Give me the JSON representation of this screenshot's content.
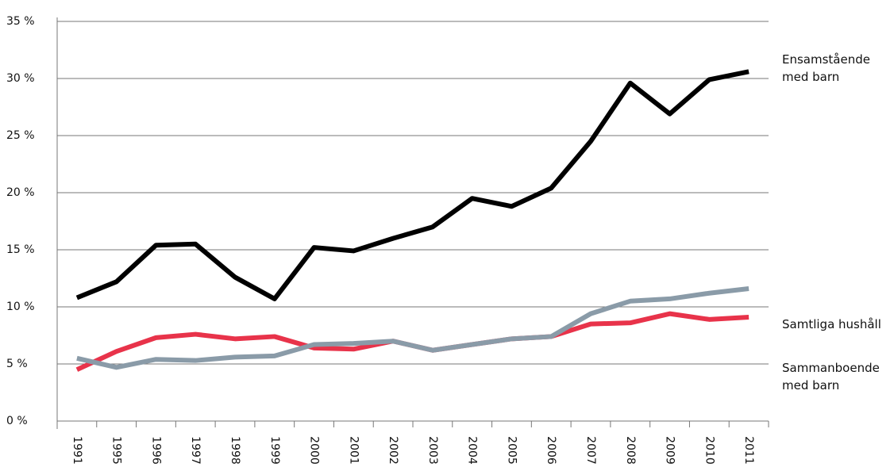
{
  "chart_data": {
    "type": "line",
    "categories": [
      "1991",
      "1995",
      "1996",
      "1997",
      "1998",
      "1999",
      "2000",
      "2001",
      "2002",
      "2003",
      "2004",
      "2005",
      "2006",
      "2007",
      "2008",
      "2009",
      "2010",
      "2011"
    ],
    "series": [
      {
        "name": "Ensamstående med barn",
        "color": "#000000",
        "values": [
          10.8,
          12.2,
          15.4,
          15.5,
          12.6,
          10.7,
          15.2,
          14.9,
          16.0,
          17.0,
          19.5,
          18.8,
          20.4,
          24.5,
          29.6,
          26.9,
          29.9,
          30.6
        ]
      },
      {
        "name": "Samtliga hushåll",
        "color": "#e8334a",
        "values": [
          4.5,
          6.1,
          7.3,
          7.6,
          7.2,
          7.4,
          6.4,
          6.3,
          7.0,
          6.2,
          6.7,
          7.2,
          7.4,
          8.5,
          8.6,
          9.4,
          8.9,
          9.1
        ]
      },
      {
        "name": "Sammanboende med barn",
        "color": "#8a9ba8",
        "values": [
          5.5,
          4.7,
          5.4,
          5.3,
          5.6,
          5.7,
          6.7,
          6.8,
          7.0,
          6.2,
          6.7,
          7.2,
          7.4,
          9.4,
          10.5,
          10.7,
          11.2,
          11.6
        ]
      }
    ],
    "ylim": [
      0,
      35
    ],
    "yticks": [
      {
        "value": 0,
        "label": "0 %"
      },
      {
        "value": 5,
        "label": "5 %"
      },
      {
        "value": 10,
        "label": "10 %"
      },
      {
        "value": 15,
        "label": "15 %"
      },
      {
        "value": 20,
        "label": "20 %"
      },
      {
        "value": 25,
        "label": "25 %"
      },
      {
        "value": 30,
        "label": "30 %"
      },
      {
        "value": 35,
        "label": "35 %"
      }
    ],
    "grid": true
  }
}
